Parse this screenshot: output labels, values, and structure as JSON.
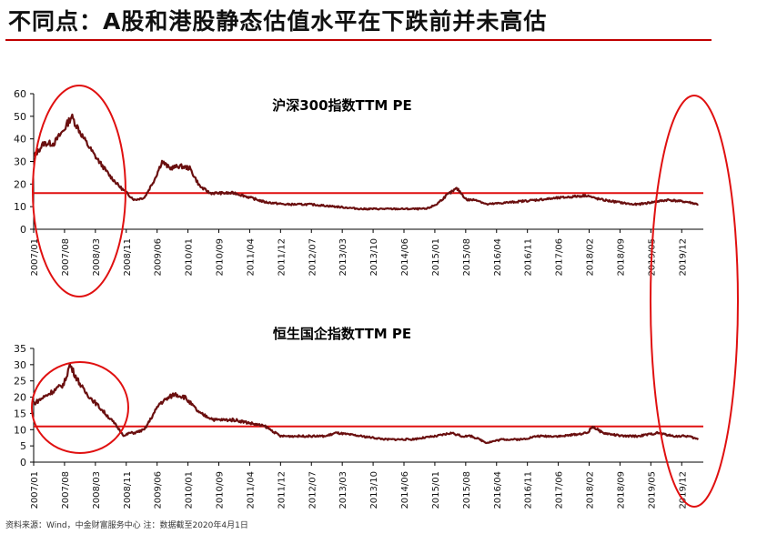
{
  "headline": "不同点：A股和港股静态估值水平在下跌前并未高估",
  "source": "资料来源：Wind，中金财富服务中心 注：数据截至2020年4月1日",
  "colors": {
    "series": "#6a0f0f",
    "reference_line": "#e01010",
    "highlight_ellipse": "#e01010",
    "rule": "#c00000"
  },
  "chart_data": [
    {
      "type": "line",
      "title": "沪深300指数TTM PE",
      "xlabel": "",
      "ylabel": "",
      "ylim": [
        0,
        60
      ],
      "yticks": [
        0,
        10,
        20,
        30,
        40,
        50,
        60
      ],
      "reference_line": 16,
      "grid": false,
      "x_ticks": [
        "2007/01",
        "2007/08",
        "2008/03",
        "2008/11",
        "2009/06",
        "2010/01",
        "2010/09",
        "2011/04",
        "2011/12",
        "2012/07",
        "2013/03",
        "2013/10",
        "2014/06",
        "2015/01",
        "2015/08",
        "2016/04",
        "2016/11",
        "2017/06",
        "2018/02",
        "2018/09",
        "2019/05",
        "2019/12"
      ],
      "series": [
        {
          "x": [
            2007.0,
            2007.2,
            2007.4,
            2007.6,
            2007.75,
            2007.85,
            2008.0,
            2008.2,
            2008.5,
            2008.7,
            2008.9,
            2009.0,
            2009.2,
            2009.4,
            2009.55,
            2009.7,
            2009.9,
            2010.1,
            2010.3,
            2010.5,
            2010.8,
            2011.0,
            2011.3,
            2011.6,
            2012.0,
            2012.5,
            2013.0,
            2013.5,
            2014.0,
            2014.5,
            2014.8,
            2015.0,
            2015.2,
            2015.4,
            2015.45,
            2015.6,
            2015.8,
            2016.0,
            2016.5,
            2017.0,
            2017.5,
            2018.0,
            2018.1,
            2018.3,
            2018.6,
            2018.9,
            2019.0,
            2019.3,
            2019.6,
            2020.0,
            2020.2
          ],
          "values": [
            32,
            38,
            38,
            44,
            50,
            46,
            40,
            33,
            24,
            19,
            15,
            13,
            14,
            22,
            30,
            27,
            28,
            27,
            19,
            16,
            16,
            16,
            14,
            12,
            11,
            11,
            10,
            9,
            9,
            9,
            9,
            11,
            15,
            18,
            17,
            13,
            13,
            11,
            12,
            13,
            14,
            15,
            14,
            13,
            12,
            11,
            11,
            12,
            13,
            12,
            11
          ]
        }
      ]
    },
    {
      "type": "line",
      "title": "恒生国企指数TTM PE",
      "xlabel": "",
      "ylabel": "",
      "ylim": [
        0,
        35
      ],
      "yticks": [
        0,
        5,
        10,
        15,
        20,
        25,
        30,
        35
      ],
      "reference_line": 11,
      "grid": false,
      "x_ticks": [
        "2007/01",
        "2007/08",
        "2008/03",
        "2008/11",
        "2009/06",
        "2010/01",
        "2010/09",
        "2011/04",
        "2011/12",
        "2012/07",
        "2013/03",
        "2013/10",
        "2014/06",
        "2015/01",
        "2015/08",
        "2016/04",
        "2016/11",
        "2017/06",
        "2018/02",
        "2018/09",
        "2019/05",
        "2019/12"
      ],
      "series": [
        {
          "x": [
            2007.0,
            2007.2,
            2007.4,
            2007.6,
            2007.72,
            2007.85,
            2008.0,
            2008.3,
            2008.6,
            2008.8,
            2008.9,
            2009.0,
            2009.2,
            2009.5,
            2009.8,
            2010.0,
            2010.3,
            2010.6,
            2011.0,
            2011.3,
            2011.6,
            2011.9,
            2012.3,
            2012.8,
            2013.0,
            2013.5,
            2014.0,
            2014.5,
            2015.0,
            2015.3,
            2015.5,
            2015.7,
            2016.0,
            2016.3,
            2016.7,
            2017.0,
            2017.5,
            2018.0,
            2018.1,
            2018.3,
            2018.7,
            2019.0,
            2019.4,
            2019.7,
            2020.0,
            2020.2
          ],
          "values": [
            18,
            20,
            22,
            24,
            30,
            26,
            22,
            17,
            12,
            8,
            9,
            9,
            10,
            18,
            21,
            20,
            15,
            13,
            13,
            12,
            11,
            8,
            8,
            8,
            9,
            8,
            7,
            7,
            8,
            9,
            8,
            8,
            6,
            7,
            7,
            8,
            8,
            9,
            11,
            9,
            8,
            8,
            9,
            8,
            8,
            7
          ]
        }
      ]
    }
  ]
}
